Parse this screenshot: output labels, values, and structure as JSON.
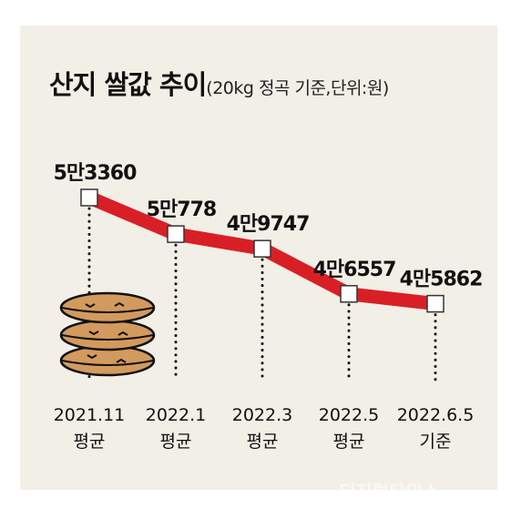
{
  "title": "산지 쌀값 추이",
  "subtitle": "(20kg 정곡 기준,단위:원)",
  "chart_data": {
    "type": "line",
    "title": "산지 쌀값 추이",
    "subtitle": "(20kg 정곡 기준,단위:원)",
    "categories": [
      "2021.11",
      "2022.1",
      "2022.3",
      "2022.5",
      "2022.6.5"
    ],
    "category_notes": [
      "평균",
      "평균",
      "평균",
      "평균",
      "기준"
    ],
    "series": [
      {
        "values": [
          53360,
          50778,
          49747,
          46557,
          45862
        ]
      }
    ],
    "value_labels": [
      "5만3360",
      "5만778",
      "4만9747",
      "4만6557",
      "4만5862"
    ],
    "ylim": [
      45000,
      54000
    ],
    "grid": false,
    "legend": "none",
    "line_color": "#d91f26",
    "marker_fill": "#ffffff"
  },
  "watermark": "디지털타임스"
}
